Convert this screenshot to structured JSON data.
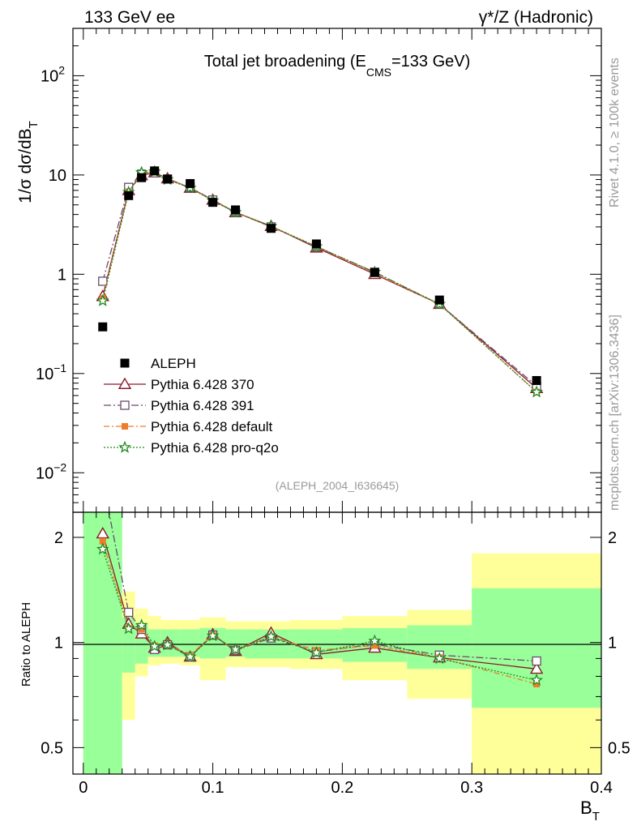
{
  "header": {
    "left": "133 GeV ee",
    "right": "γ*/Z (Hadronic)"
  },
  "side_labels": {
    "rivet": "Rivet 4.1.0, ≥ 100k events",
    "mcplots": "mcplots.cern.ch [arXiv:1306.3436]"
  },
  "analysis_id": "(ALEPH_2004_I636645)",
  "chart_data": [
    {
      "id": "main",
      "type": "line",
      "title_main": "Total jet broadening (E",
      "title_sub": "CMS",
      "title_tail": "=133 GeV)",
      "ylabel": "1/σ  dσ/dB",
      "ylabel_sub": "T",
      "yscale": "log",
      "ylim": [
        0.004,
        300
      ],
      "xlim": [
        -0.008,
        0.4
      ],
      "ytick_labels": [
        {
          "value": 100,
          "base": "10",
          "exp": "2"
        },
        {
          "value": 10,
          "base": "10",
          "exp": ""
        },
        {
          "value": 1,
          "base": "1",
          "exp": ""
        },
        {
          "value": 0.1,
          "base": "10",
          "exp": "−1"
        },
        {
          "value": 0.01,
          "base": "10",
          "exp": "−2"
        }
      ],
      "x": [
        0.015,
        0.035,
        0.045,
        0.055,
        0.065,
        0.0825,
        0.1,
        0.1175,
        0.145,
        0.18,
        0.225,
        0.275,
        0.35
      ],
      "data": {
        "name": "ALEPH",
        "values": [
          0.295,
          6.2,
          9.4,
          11.0,
          9.1,
          8.2,
          5.3,
          4.45,
          2.9,
          2.02,
          1.04,
          0.55,
          0.085
        ]
      },
      "series": [
        {
          "name": "Pythia 6.428 370",
          "color": "#8b1a2a",
          "dash": "",
          "marker": "triangle-open",
          "values": [
            0.6,
            7.0,
            9.9,
            10.6,
            9.2,
            7.4,
            5.6,
            4.2,
            3.05,
            1.85,
            1.0,
            0.5,
            0.071
          ]
        },
        {
          "name": "Pythia 6.428 391",
          "color": "#6b4a6e",
          "dash": "9,3,2,3",
          "marker": "square-open",
          "values": [
            0.85,
            7.5,
            10.2,
            10.5,
            9.1,
            7.5,
            5.6,
            4.2,
            3.0,
            1.9,
            1.05,
            0.5,
            0.075
          ]
        },
        {
          "name": "Pythia 6.428 default",
          "color": "#f07c2a",
          "dash": "7,3,2,3",
          "marker": "square-filled",
          "values": [
            0.57,
            6.8,
            10.3,
            10.8,
            9.0,
            7.5,
            5.5,
            4.2,
            3.0,
            1.92,
            1.02,
            0.5,
            0.065
          ]
        },
        {
          "name": "Pythia 6.428 pro-q2o",
          "color": "#1f8a1f",
          "dash": "2,2",
          "marker": "star",
          "values": [
            0.54,
            6.7,
            10.6,
            10.8,
            9.0,
            7.4,
            5.5,
            4.2,
            3.05,
            1.9,
            1.05,
            0.5,
            0.065
          ]
        }
      ]
    },
    {
      "id": "ratio",
      "type": "line",
      "ylabel": "Ratio to ALEPH",
      "xlabel": "B",
      "xlabel_sub": "T",
      "yscale": "log",
      "ylim": [
        0.42,
        2.36
      ],
      "xlim": [
        -0.008,
        0.4
      ],
      "ytick_labels": [
        {
          "value": 2,
          "label": "2"
        },
        {
          "value": 1,
          "label": "1"
        },
        {
          "value": 0.5,
          "label": "0.5"
        }
      ],
      "xtick_labels": [
        {
          "value": 0,
          "label": "0"
        },
        {
          "value": 0.1,
          "label": "0.1"
        },
        {
          "value": 0.2,
          "label": "0.2"
        },
        {
          "value": 0.3,
          "label": "0.3"
        },
        {
          "value": 0.4,
          "label": "0.4"
        }
      ],
      "bands": [
        {
          "x0": 0.0,
          "x1": 0.03,
          "y_lo": 0.3,
          "y_hi": 3.0,
          "g_lo": 0.3,
          "g_hi": 3.0
        },
        {
          "x0": 0.03,
          "x1": 0.04,
          "y_lo": 0.6,
          "y_hi": 1.4,
          "g_lo": 0.82,
          "g_hi": 1.18
        },
        {
          "x0": 0.04,
          "x1": 0.05,
          "y_lo": 0.8,
          "y_hi": 1.25,
          "g_lo": 0.87,
          "g_hi": 1.13
        },
        {
          "x0": 0.05,
          "x1": 0.06,
          "y_lo": 0.86,
          "y_hi": 1.19,
          "g_lo": 0.91,
          "g_hi": 1.09
        },
        {
          "x0": 0.06,
          "x1": 0.075,
          "y_lo": 0.87,
          "y_hi": 1.16,
          "g_lo": 0.91,
          "g_hi": 1.09
        },
        {
          "x0": 0.075,
          "x1": 0.09,
          "y_lo": 0.86,
          "y_hi": 1.16,
          "g_lo": 0.91,
          "g_hi": 1.09
        },
        {
          "x0": 0.09,
          "x1": 0.11,
          "y_lo": 0.78,
          "y_hi": 1.18,
          "g_lo": 0.9,
          "g_hi": 1.1
        },
        {
          "x0": 0.11,
          "x1": 0.125,
          "y_lo": 0.85,
          "y_hi": 1.15,
          "g_lo": 0.91,
          "g_hi": 1.09
        },
        {
          "x0": 0.125,
          "x1": 0.16,
          "y_lo": 0.85,
          "y_hi": 1.15,
          "g_lo": 0.9,
          "g_hi": 1.09
        },
        {
          "x0": 0.16,
          "x1": 0.2,
          "y_lo": 0.84,
          "y_hi": 1.16,
          "g_lo": 0.9,
          "g_hi": 1.09
        },
        {
          "x0": 0.2,
          "x1": 0.25,
          "y_lo": 0.78,
          "y_hi": 1.19,
          "g_lo": 0.88,
          "g_hi": 1.1
        },
        {
          "x0": 0.25,
          "x1": 0.3,
          "y_lo": 0.69,
          "y_hi": 1.24,
          "g_lo": 0.84,
          "g_hi": 1.12
        },
        {
          "x0": 0.3,
          "x1": 0.4,
          "y_lo": 0.3,
          "y_hi": 1.8,
          "g_lo": 0.65,
          "g_hi": 1.43
        }
      ],
      "x": [
        0.015,
        0.035,
        0.045,
        0.055,
        0.065,
        0.0825,
        0.1,
        0.1175,
        0.145,
        0.18,
        0.225,
        0.275,
        0.35
      ],
      "series": [
        {
          "name": "Pythia 6.428 370",
          "values": [
            2.05,
            1.13,
            1.06,
            0.965,
            1.0,
            0.91,
            1.055,
            0.945,
            1.065,
            0.925,
            0.965,
            0.905,
            0.84
          ]
        },
        {
          "name": "Pythia 6.428 391",
          "values": [
            2.9,
            1.22,
            1.09,
            0.955,
            0.985,
            0.91,
            1.05,
            0.95,
            1.03,
            0.94,
            0.99,
            0.92,
            0.885
          ]
        },
        {
          "name": "Pythia 6.428 default",
          "values": [
            1.95,
            1.1,
            1.09,
            0.98,
            0.985,
            0.92,
            1.05,
            0.95,
            1.04,
            0.95,
            0.98,
            0.905,
            0.76
          ]
        },
        {
          "name": "Pythia 6.428 pro-q2o",
          "values": [
            1.85,
            1.095,
            1.12,
            0.975,
            0.985,
            0.91,
            1.045,
            0.955,
            1.04,
            0.935,
            1.01,
            0.9,
            0.78
          ]
        }
      ]
    }
  ]
}
